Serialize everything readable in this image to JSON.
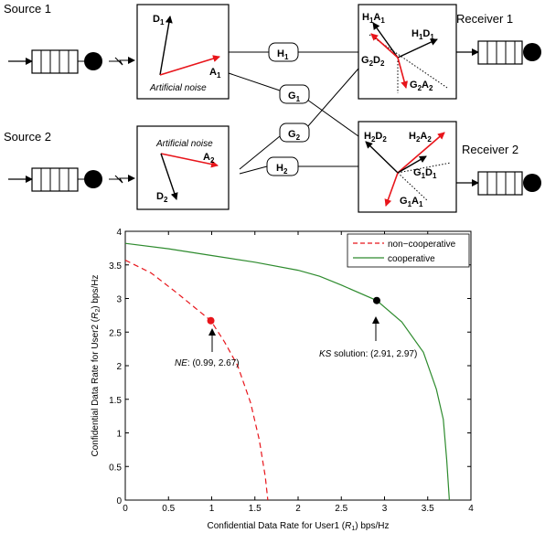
{
  "diagram": {
    "sources": [
      "Source 1",
      "Source 2"
    ],
    "receivers": [
      "Receiver 1",
      "Receiver 2"
    ],
    "channels": {
      "h1": "H",
      "h1_sub": "1",
      "g1": "G",
      "g1_sub": "1",
      "g2": "G",
      "g2_sub": "2",
      "h2": "H",
      "h2_sub": "2"
    },
    "tx1": {
      "d": "D",
      "d_sub": "1",
      "a": "A",
      "a_sub": "1",
      "noise": "Artificial noise"
    },
    "tx2": {
      "d": "D",
      "d_sub": "2",
      "a": "A",
      "a_sub": "2",
      "noise": "Artificial noise"
    },
    "rx1": {
      "a": {
        "p1": "H",
        "s1": "1",
        "p2": "A",
        "s2": "1"
      },
      "b": {
        "p1": "H",
        "s1": "1",
        "p2": "D",
        "s2": "1"
      },
      "c": {
        "p1": "G",
        "s1": "2",
        "p2": "D",
        "s2": "2"
      },
      "d": {
        "p1": "G",
        "s1": "2",
        "p2": "A",
        "s2": "2"
      }
    },
    "rx2": {
      "a": {
        "p1": "H",
        "s1": "2",
        "p2": "D",
        "s2": "2"
      },
      "b": {
        "p1": "H",
        "s1": "2",
        "p2": "A",
        "s2": "2"
      },
      "c": {
        "p1": "G",
        "s1": "1",
        "p2": "D",
        "s2": "1"
      },
      "d": {
        "p1": "G",
        "s1": "1",
        "p2": "A",
        "s2": "1"
      }
    },
    "colors": {
      "signal": "#000000",
      "noise": "#e8151b"
    }
  },
  "chart_data": {
    "type": "line",
    "xlabel": {
      "pre": "Confidential Data Rate for User1 (",
      "var": "R",
      "sub": "1",
      "post": ") bps/Hz"
    },
    "ylabel": {
      "pre": "Confidential Data Rate for User2 (",
      "var": "R",
      "sub": "2",
      "post": ") bps/Hz"
    },
    "xlim": [
      0,
      4
    ],
    "ylim": [
      0,
      4
    ],
    "xticks": [
      "0",
      "0.5",
      "1",
      "1.5",
      "2",
      "2.5",
      "3",
      "3.5",
      "4"
    ],
    "yticks": [
      "0",
      "0.5",
      "1",
      "1.5",
      "2",
      "2.5",
      "3",
      "3.5",
      "4"
    ],
    "legend_position": "top-right",
    "series": [
      {
        "name": "non−cooperative",
        "color": "#e8151b",
        "style": "dashed",
        "x": [
          0,
          0.3,
          0.6,
          0.8,
          0.99,
          1.15,
          1.3,
          1.45,
          1.55,
          1.62,
          1.65
        ],
        "y": [
          3.57,
          3.38,
          3.08,
          2.87,
          2.67,
          2.35,
          2.0,
          1.45,
          0.9,
          0.35,
          0
        ]
      },
      {
        "name": "cooperative",
        "color": "#2e8b2e",
        "style": "solid",
        "x": [
          0,
          0.5,
          1.0,
          1.5,
          2.0,
          2.25,
          2.5,
          2.91,
          3.2,
          3.45,
          3.6,
          3.68,
          3.72,
          3.75
        ],
        "y": [
          3.82,
          3.74,
          3.64,
          3.54,
          3.42,
          3.33,
          3.2,
          2.97,
          2.65,
          2.2,
          1.65,
          1.2,
          0.6,
          0
        ]
      }
    ],
    "points": [
      {
        "label_em": "NE",
        "label_rest": ": (0.99, 2.67)",
        "x": 0.99,
        "y": 2.67,
        "color": "#e8151b"
      },
      {
        "label_em": "KS",
        "label_rest": " solution: (2.91, 2.97)",
        "x": 2.91,
        "y": 2.97,
        "color": "#000000"
      }
    ]
  }
}
